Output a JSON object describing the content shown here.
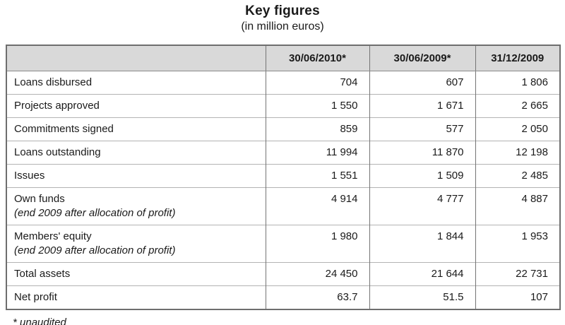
{
  "title": "Key figures",
  "subtitle": "(in million euros)",
  "footnote": "* unaudited",
  "colors": {
    "header_bg": "#d9d9d9",
    "outer_border": "#6e6e6e",
    "vertical_border": "#747474",
    "horizontal_border": "#b3b3b3",
    "text": "#1a1a1a"
  },
  "table": {
    "columns": [
      "30/06/2010*",
      "30/06/2009*",
      "31/12/2009"
    ],
    "rows": [
      {
        "label": "Loans disbursed",
        "values": [
          "704",
          "607",
          "1 806"
        ]
      },
      {
        "label": "Projects approved",
        "values": [
          "1 550",
          "1 671",
          "2 665"
        ]
      },
      {
        "label": "Commitments signed",
        "values": [
          "859",
          "577",
          "2 050"
        ]
      },
      {
        "label": "Loans outstanding",
        "values": [
          "11 994",
          "11 870",
          "12 198"
        ]
      },
      {
        "label": "Issues",
        "values": [
          "1 551",
          "1 509",
          "2 485"
        ]
      },
      {
        "label": "Own funds",
        "sublabel": "(end 2009 after allocation of profit)",
        "values": [
          "4 914",
          "4 777",
          "4 887"
        ]
      },
      {
        "label": "Members' equity",
        "sublabel": "(end 2009 after allocation of profit)",
        "values": [
          "1 980",
          "1 844",
          "1 953"
        ]
      },
      {
        "label": "Total assets",
        "values": [
          "24 450",
          "21 644",
          "22 731"
        ]
      },
      {
        "label": "Net profit",
        "values": [
          "63.7",
          "51.5",
          "107"
        ]
      }
    ]
  }
}
